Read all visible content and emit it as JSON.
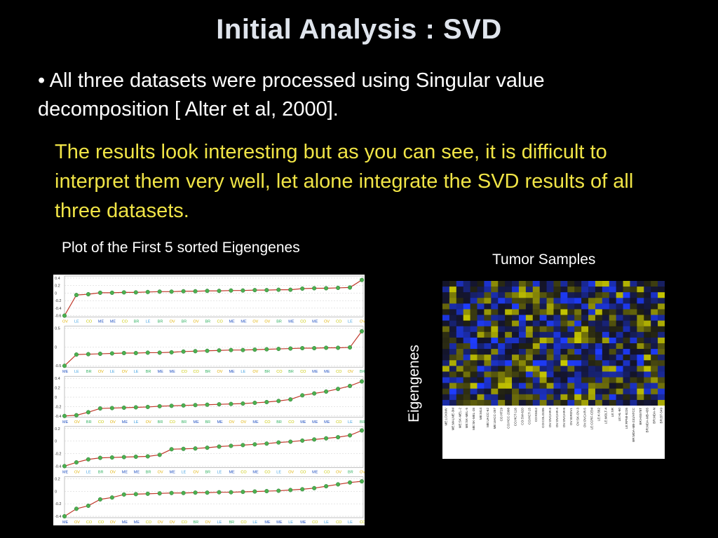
{
  "slide": {
    "title": "Initial Analysis : SVD",
    "bullet": "• All three datasets were processed using Singular value decomposition [ Alter et al, 2000].",
    "note": "The results look interesting but as you can see, it is difficult to interpret them very well, let alone integrate the SVD results of all three datasets.",
    "left_caption": "Plot of the First 5 sorted Eigengenes",
    "right_caption": "Tumor Samples",
    "vertical_label": "Eigengenes"
  },
  "colors": {
    "background": "#000000",
    "title": "#dfe4ec",
    "note": "#f0e446",
    "line": "#c0392b",
    "marker": "#4caf50",
    "heatmap_yellow": "#c8c800",
    "heatmap_blue": "#1e3cff"
  },
  "plot": {
    "panels": [
      {
        "ticks": [
          "0.4",
          "0.2",
          "0",
          "-0.2",
          "-0.4",
          "-0.6"
        ]
      },
      {
        "ticks": [
          "0.5",
          "0",
          "-0.5"
        ]
      },
      {
        "ticks": [
          "0.4",
          "0.2",
          "0",
          "-0.2",
          "-0.4"
        ]
      },
      {
        "ticks": [
          "0.2",
          "0",
          "-0.2",
          "-0.4"
        ]
      },
      {
        "ticks": [
          "0.2",
          "0",
          "-0.2",
          "-0.4"
        ]
      }
    ],
    "labels": [
      [
        "OV",
        "LE",
        "CO",
        "ME",
        "ME",
        "CO",
        "BR",
        "LE",
        "BR",
        "OV",
        "BR",
        "OV",
        "BR",
        "CO",
        "ME",
        "ME",
        "OV",
        "OV",
        "BR",
        "ME",
        "CO",
        "ME",
        "OV",
        "CO",
        "LE",
        "OV"
      ],
      [
        "ME",
        "LE",
        "BR",
        "OV",
        "LE",
        "OV",
        "LE",
        "BR",
        "ME",
        "ME",
        "CO",
        "CO",
        "BR",
        "OV",
        "ME",
        "LE",
        "OV",
        "BR",
        "CO",
        "BR",
        "CO",
        "ME",
        "ME",
        "CO",
        "OV",
        "BR"
      ],
      [
        "ME",
        "OV",
        "BR",
        "CO",
        "OV",
        "ME",
        "LE",
        "OV",
        "BR",
        "CO",
        "BR",
        "ME",
        "BR",
        "ME",
        "OV",
        "OV",
        "ME",
        "CO",
        "BR",
        "CO",
        "ME",
        "ME",
        "ME",
        "CO",
        "LE",
        "BR"
      ],
      [
        "ME",
        "OV",
        "LE",
        "BR",
        "OV",
        "ME",
        "ME",
        "BR",
        "OV",
        "ME",
        "LE",
        "OV",
        "BR",
        "LE",
        "ME",
        "CO",
        "ME",
        "CO",
        "LE",
        "OV",
        "CO",
        "ME",
        "CO",
        "OV",
        "BR",
        "OV"
      ],
      [
        "ME",
        "OV",
        "CO",
        "CO",
        "OV",
        "ME",
        "ME",
        "CO",
        "OV",
        "OV",
        "CO",
        "BR",
        "OV",
        "LE",
        "BR",
        "CO",
        "LE",
        "ME",
        "ME",
        "LE",
        "ME",
        "CO",
        "LE",
        "CO",
        "LE",
        "CO"
      ]
    ]
  },
  "heatmap": {
    "samples": [
      "ME:LOXIMV",
      "ME:MALME-3M",
      "ME:SK-MEL-2",
      "ME:SK-MEL-5",
      "ME:SK-MEL-28",
      "ME:M14",
      "ME:UACC-62",
      "ME:UACC-257",
      "CO:HT29",
      "CO:HCC-2998",
      "CO:HCT-116",
      "CO:SW-620",
      "CO:HCT-15",
      "CO:KM12",
      "CO:COLO205",
      "OV:OVCAR-3",
      "OV:OVCAR-4",
      "OV:OVCAR-8",
      "OV:IGROV1",
      "OV:SK-OV-3",
      "OV:OVCAR-5",
      "LE:CCRF-CEM",
      "LE:K-562",
      "LE:MOLT-4",
      "LE:SR",
      "LE:HL-60",
      "LE:RPMI-8226",
      "BR:MDA-MB-231/ATCC",
      "BR:HS578T",
      "BR:MDA-MB-435",
      "BR:MDA-N",
      "BR:BT-549"
    ]
  }
}
